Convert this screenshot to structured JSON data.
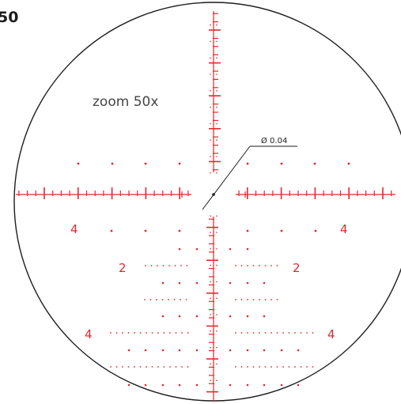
{
  "corner_label": "50",
  "zoom_label": "zoom 50x",
  "dot_label": "Ø 0.04",
  "hold_labels": {
    "left_4": "4",
    "right_4": "4",
    "left_2": "2",
    "right_2": "2",
    "lower_left_4": "4",
    "lower_right_4": "4"
  },
  "colors": {
    "reticle_red": "#e02a2a",
    "ink": "#1d1d1d",
    "text_gray": "#454545"
  }
}
